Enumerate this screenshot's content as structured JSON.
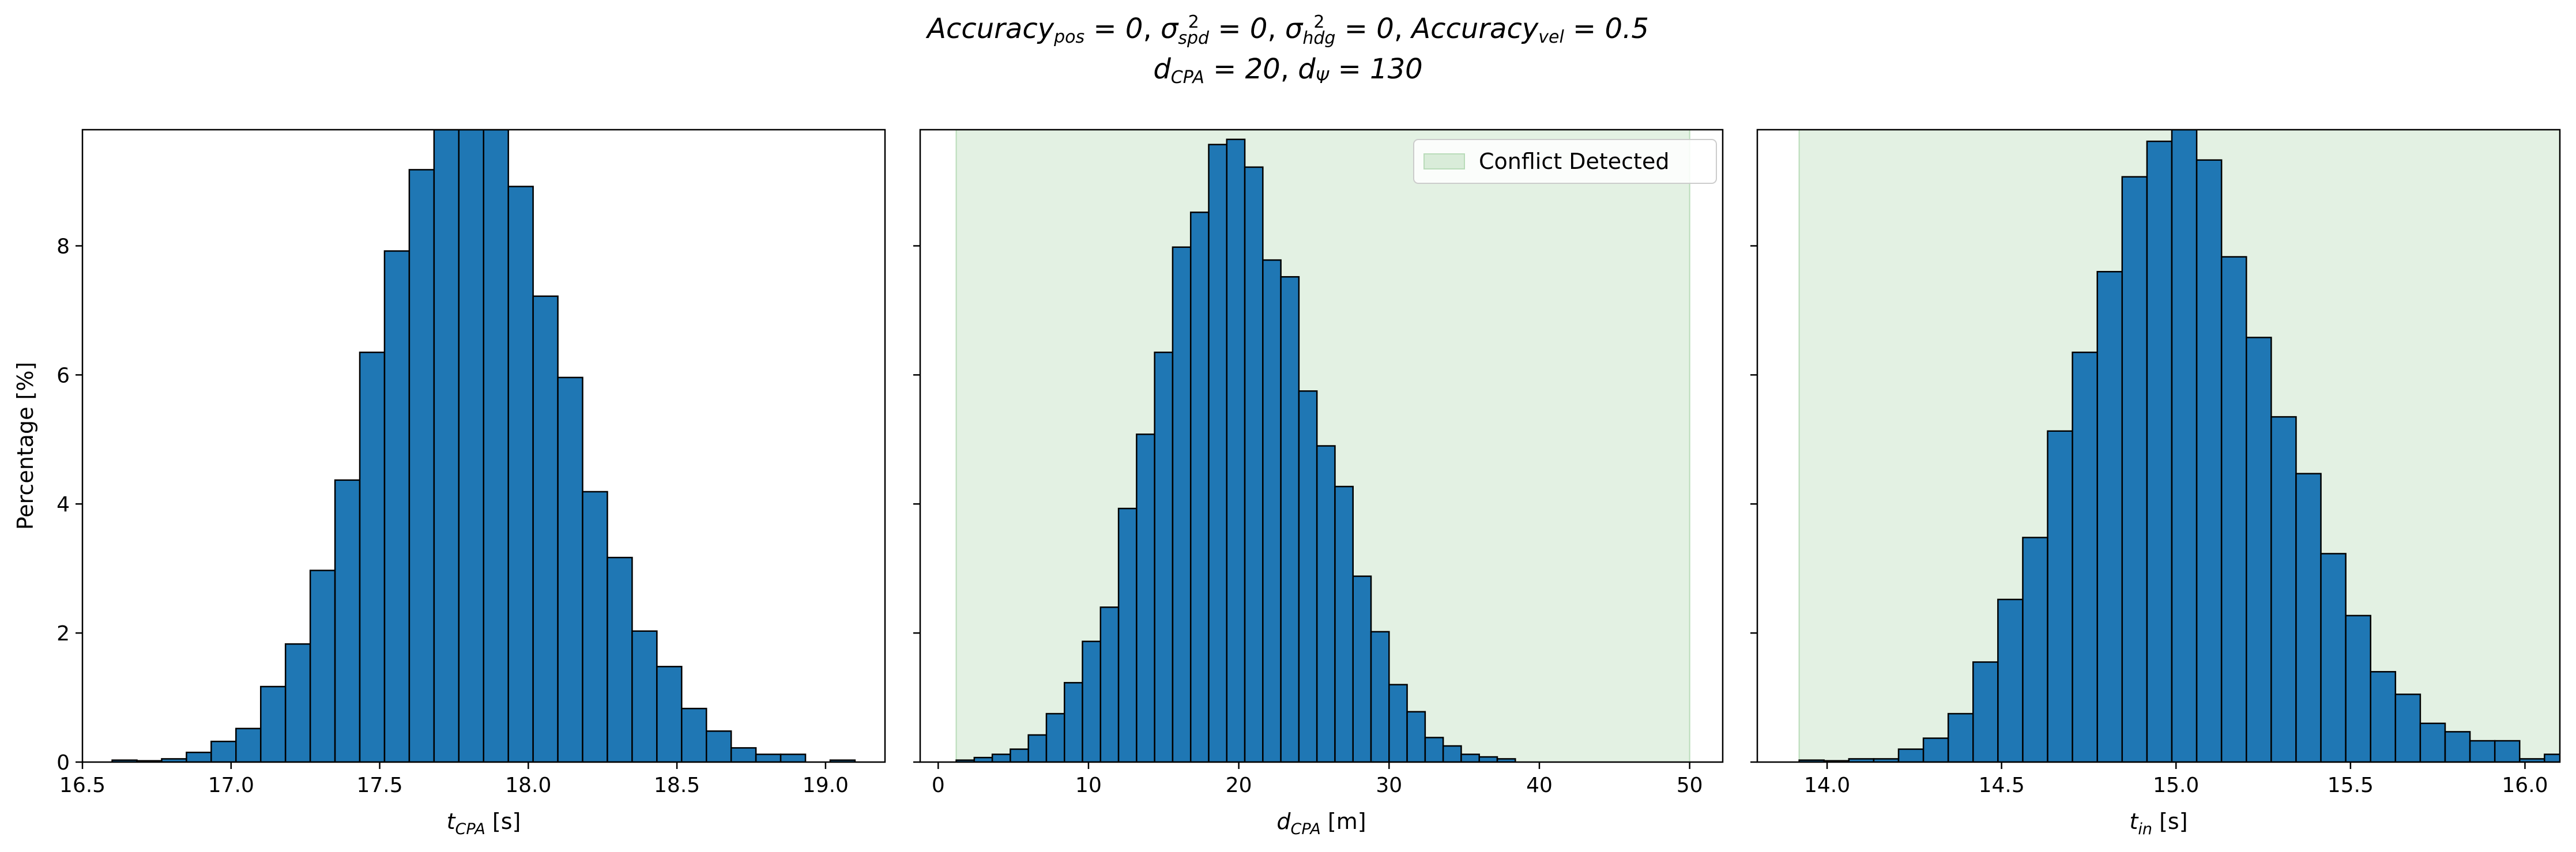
{
  "title": {
    "line1": "Accuracy_pos = 0, σ²_spd = 0, σ²_hdg = 0, Accuracy_vel = 0.5",
    "line2": "d_CPA = 20, d_Ψ = 130"
  },
  "colors": {
    "bar_fill": "#1f77b4",
    "bar_edge": "#000000",
    "conflict_span": "#d9ecd9"
  },
  "chart_data": [
    {
      "type": "bar",
      "subtype": "histogram",
      "xlabel": "t_CPA [s]",
      "ylabel": "Percentage [%]",
      "xlim": [
        16.5,
        19.2
      ],
      "ylim": [
        0,
        9.8
      ],
      "xticks": [
        "16.5",
        "17.0",
        "17.5",
        "18.0",
        "18.5",
        "19.0"
      ],
      "yticks": [
        "0",
        "2",
        "4",
        "6",
        "8"
      ],
      "bins_start": 16.6,
      "bin_width": 0.0833,
      "values": [
        0.03,
        0.02,
        0.05,
        0.15,
        0.32,
        0.52,
        1.17,
        1.83,
        2.97,
        4.37,
        6.35,
        7.92,
        9.18,
        9.8,
        9.8,
        9.8,
        8.92,
        7.22,
        5.96,
        4.19,
        3.17,
        2.03,
        1.48,
        0.83,
        0.48,
        0.22,
        0.12,
        0.12,
        0.0,
        0.03
      ],
      "conflict_span": null,
      "legend": null
    },
    {
      "type": "bar",
      "subtype": "histogram",
      "xlabel": "d_CPA [m]",
      "ylabel": "",
      "xlim": [
        -1.2,
        52.2
      ],
      "ylim": [
        0,
        9.8
      ],
      "xticks": [
        "0",
        "10",
        "20",
        "30",
        "40",
        "50"
      ],
      "yticks": [],
      "bins_start": 1.2,
      "bin_width": 1.2,
      "values": [
        0.03,
        0.07,
        0.12,
        0.2,
        0.42,
        0.75,
        1.23,
        1.87,
        2.4,
        3.93,
        5.08,
        6.35,
        7.98,
        8.52,
        9.57,
        9.65,
        9.22,
        7.78,
        7.52,
        5.75,
        4.9,
        4.27,
        2.88,
        2.02,
        1.2,
        0.78,
        0.38,
        0.25,
        0.12,
        0.08,
        0.05,
        0.0,
        0.0
      ],
      "conflict_span": [
        1.2,
        50
      ],
      "legend": {
        "label": "Conflict Detected",
        "location": "upper right"
      }
    },
    {
      "type": "bar",
      "subtype": "histogram",
      "xlabel": "t_in [s]",
      "ylabel": "",
      "xlim": [
        13.8,
        16.1
      ],
      "ylim": [
        0,
        9.8
      ],
      "xticks": [
        "14.0",
        "14.5",
        "15.0",
        "15.5",
        "16.0"
      ],
      "yticks": [],
      "bins_start": 13.92,
      "bin_width": 0.0712,
      "values": [
        0.03,
        0.02,
        0.05,
        0.05,
        0.2,
        0.37,
        0.75,
        1.55,
        2.52,
        3.48,
        5.13,
        6.35,
        7.6,
        9.07,
        9.62,
        9.8,
        9.33,
        7.83,
        6.58,
        5.35,
        4.47,
        3.23,
        2.27,
        1.4,
        1.05,
        0.6,
        0.47,
        0.33,
        0.33,
        0.05,
        0.12
      ],
      "conflict_span": [
        13.92,
        16.1
      ],
      "legend": null
    }
  ]
}
